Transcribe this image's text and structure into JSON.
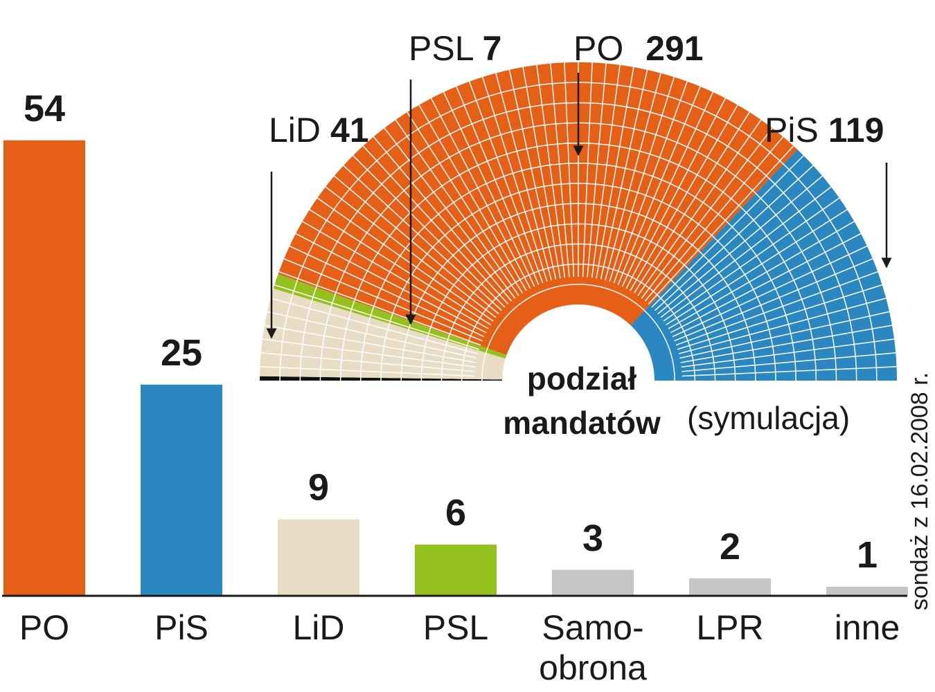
{
  "chart_data": [
    {
      "type": "bar",
      "categories": [
        "PO",
        "PiS",
        "LiD",
        "PSL",
        "Samo-\nobrona",
        "LPR",
        "inne"
      ],
      "values": [
        54,
        25,
        9,
        6,
        3,
        2,
        1
      ],
      "colors": [
        "#e65f17",
        "#2a87c0",
        "#e8dcc4",
        "#95c11f",
        "#c6c6c8",
        "#c6c6c8",
        "#c6c6c8"
      ]
    },
    {
      "type": "parliament",
      "title": "podział mandatów",
      "subtitle": "(symulacja)",
      "categories": [
        null,
        "LiD",
        "PSL",
        "PO",
        "PiS"
      ],
      "values": [
        2,
        41,
        7,
        291,
        119
      ],
      "colors": [
        "#111111",
        "#e8dcc4",
        "#95c11f",
        "#e65f17",
        "#2a87c0"
      ]
    }
  ],
  "source": "sondaż z 16.02.2008 r."
}
